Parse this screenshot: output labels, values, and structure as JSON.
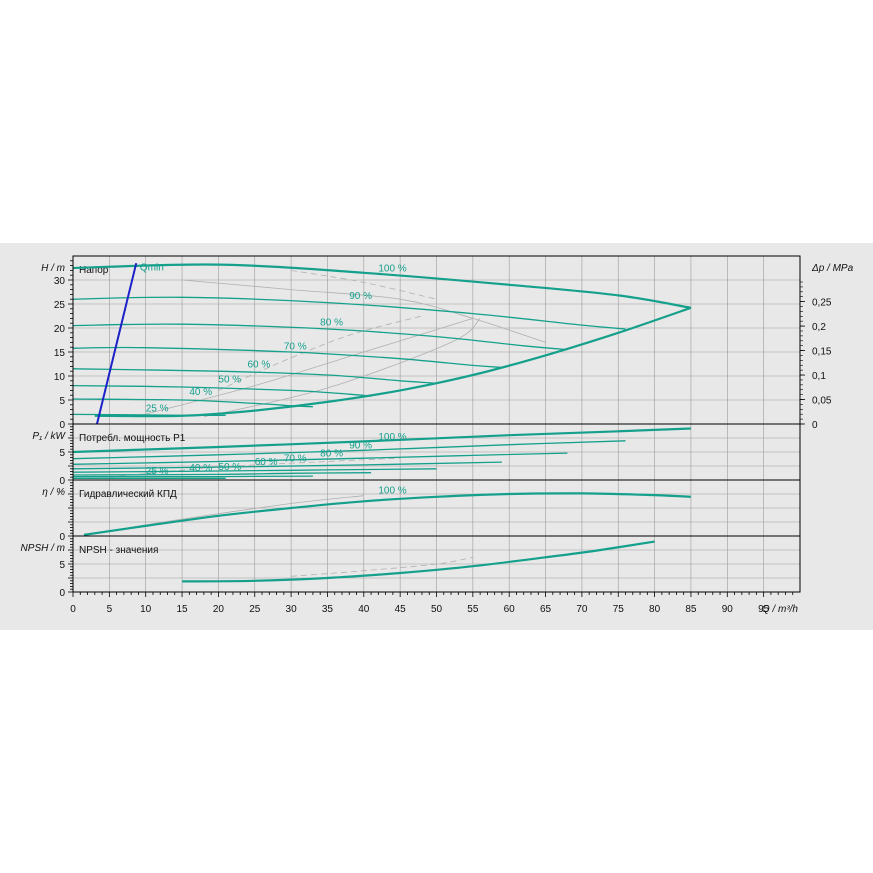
{
  "chart_data": {
    "type": "line",
    "x_axis": {
      "label": "Q / m³/h",
      "range": [
        0,
        100
      ],
      "ticks": [
        0,
        5,
        10,
        15,
        20,
        25,
        30,
        35,
        40,
        45,
        50,
        55,
        60,
        65,
        70,
        75,
        80,
        85,
        90,
        95
      ]
    },
    "colors": {
      "curve": "#15a08c",
      "qmin": "#1a22c8",
      "grid": "#9c9c9c",
      "aux": "#b0b0b0"
    },
    "panels": [
      {
        "id": "head",
        "title": "Напор",
        "ylabel": "H / m",
        "y2label": "Δp / MPa",
        "ylim": [
          0,
          35
        ],
        "yticks": [
          0,
          5,
          10,
          15,
          20,
          25,
          30
        ],
        "y2ticks": [
          {
            "h": 0,
            "label": "0"
          },
          {
            "h": 5.1,
            "label": "0,05"
          },
          {
            "h": 10.2,
            "label": "0,1"
          },
          {
            "h": 15.3,
            "label": "0,15"
          },
          {
            "h": 20.4,
            "label": "0,2"
          },
          {
            "h": 25.5,
            "label": "0,25"
          }
        ],
        "series": [
          {
            "name": "100 %",
            "points": [
              [
                0,
                32.5
              ],
              [
                20,
                33.2
              ],
              [
                40,
                31.5
              ],
              [
                60,
                29
              ],
              [
                75,
                26.8
              ],
              [
                85,
                24.2
              ]
            ],
            "label_at": [
              42,
              31.8
            ]
          },
          {
            "name": "90 %",
            "points": [
              [
                0,
                26
              ],
              [
                15,
                26.4
              ],
              [
                35,
                25.3
              ],
              [
                55,
                23
              ],
              [
                70,
                20.6
              ],
              [
                76,
                19.8
              ]
            ],
            "label_at": [
              38,
              26
            ]
          },
          {
            "name": "80 %",
            "points": [
              [
                0,
                20.5
              ],
              [
                15,
                20.8
              ],
              [
                35,
                19.8
              ],
              [
                50,
                18.2
              ],
              [
                62,
                16.3
              ],
              [
                68,
                15.5
              ]
            ],
            "label_at": [
              34,
              20.5
            ]
          },
          {
            "name": "70 %",
            "points": [
              [
                0,
                15.8
              ],
              [
                10,
                15.9
              ],
              [
                30,
                15
              ],
              [
                45,
                13.6
              ],
              [
                55,
                12.2
              ],
              [
                59,
                11.8
              ]
            ],
            "label_at": [
              29,
              15.5
            ]
          },
          {
            "name": "60 %",
            "points": [
              [
                0,
                11.5
              ],
              [
                20,
                11
              ],
              [
                35,
                10.2
              ],
              [
                45,
                9
              ],
              [
                50,
                8.5
              ]
            ],
            "label_at": [
              24,
              11.8
            ]
          },
          {
            "name": "50 %",
            "points": [
              [
                0,
                8
              ],
              [
                15,
                7.7
              ],
              [
                30,
                7
              ],
              [
                38,
                6.2
              ],
              [
                41,
                5.8
              ]
            ],
            "label_at": [
              20,
              8.6
            ]
          },
          {
            "name": "40 %",
            "points": [
              [
                0,
                5.2
              ],
              [
                15,
                5
              ],
              [
                25,
                4.3
              ],
              [
                30,
                3.8
              ],
              [
                33,
                3.6
              ]
            ],
            "label_at": [
              16,
              6
            ]
          },
          {
            "name": "25 %",
            "points": [
              [
                0,
                2
              ],
              [
                10,
                1.9
              ],
              [
                16,
                1.8
              ],
              [
                21,
                1.8
              ]
            ],
            "label_at": [
              10,
              2.6
            ]
          }
        ],
        "limit_curve": [
          [
            3,
            1.7
          ],
          [
            15,
            1.7
          ],
          [
            25,
            2.8
          ],
          [
            35,
            4.6
          ],
          [
            45,
            7
          ],
          [
            55,
            10.2
          ],
          [
            65,
            14.3
          ],
          [
            75,
            19
          ],
          [
            85,
            24.2
          ]
        ],
        "qmin": {
          "label": "Qmin",
          "points": [
            [
              3.3,
              0
            ],
            [
              8.7,
              33.5
            ]
          ],
          "label_at": [
            9.2,
            32
          ]
        },
        "aux_lines": [
          {
            "points": [
              [
                20,
                7
              ],
              [
                28,
                12.5
              ],
              [
                38,
                18.5
              ],
              [
                48,
                22.5
              ]
            ],
            "dash": true
          },
          {
            "points": [
              [
                8.5,
                1.5
              ],
              [
                25,
                8
              ],
              [
                40,
                15
              ],
              [
                55,
                22
              ]
            ],
            "dash": false
          },
          {
            "points": [
              [
                18,
                1.5
              ],
              [
                35,
                7.5
              ],
              [
                52,
                17
              ],
              [
                56,
                22
              ]
            ],
            "dash": false
          },
          {
            "points": [
              [
                15,
                30
              ],
              [
                30,
                28
              ],
              [
                45,
                26
              ],
              [
                55,
                22
              ],
              [
                65,
                17
              ]
            ],
            "dash": false
          },
          {
            "points": [
              [
                30,
                32
              ],
              [
                40,
                29.5
              ],
              [
                50,
                26
              ]
            ],
            "dash": true
          }
        ]
      },
      {
        "id": "power",
        "title": "Потребл. мощность P1",
        "ylabel": "P₁ / kW",
        "ylim": [
          0,
          10
        ],
        "yticks": [
          0,
          2.5,
          5,
          7.5
        ],
        "ytick_labels": [
          "0",
          "",
          "5",
          ""
        ],
        "series": [
          {
            "name": "100 %",
            "points": [
              [
                0,
                5
              ],
              [
                20,
                5.9
              ],
              [
                40,
                6.9
              ],
              [
                60,
                8
              ],
              [
                75,
                8.7
              ],
              [
                85,
                9.2
              ]
            ],
            "label_at": [
              42,
              7.1
            ]
          },
          {
            "name": "90 %",
            "points": [
              [
                0,
                3.8
              ],
              [
                20,
                4.5
              ],
              [
                40,
                5.3
              ],
              [
                60,
                6.3
              ],
              [
                76,
                7
              ]
            ],
            "label_at": [
              38,
              5.6
            ]
          },
          {
            "name": "80 %",
            "points": [
              [
                0,
                2.8
              ],
              [
                20,
                3.3
              ],
              [
                40,
                3.9
              ],
              [
                55,
                4.4
              ],
              [
                68,
                4.8
              ]
            ],
            "label_at": [
              34,
              4.2
            ]
          },
          {
            "name": "70 %",
            "points": [
              [
                0,
                2
              ],
              [
                20,
                2.3
              ],
              [
                40,
                2.7
              ],
              [
                59,
                3.2
              ]
            ],
            "label_at": [
              29,
              3.3
            ]
          },
          {
            "name": "60 %",
            "points": [
              [
                0,
                1.4
              ],
              [
                20,
                1.6
              ],
              [
                35,
                1.8
              ],
              [
                50,
                2
              ]
            ],
            "label_at": [
              25,
              2.7
            ]
          },
          {
            "name": "50 %",
            "points": [
              [
                0,
                0.9
              ],
              [
                20,
                1
              ],
              [
                30,
                1.2
              ],
              [
                41,
                1.3
              ]
            ],
            "label_at": [
              20,
              1.8
            ]
          },
          {
            "name": "40 %",
            "points": [
              [
                0,
                0.6
              ],
              [
                20,
                0.6
              ],
              [
                33,
                0.7
              ]
            ],
            "label_at": [
              16,
              1.6
            ]
          },
          {
            "name": "25 %",
            "points": [
              [
                0,
                0.3
              ],
              [
                10,
                0.3
              ],
              [
                21,
                0.3
              ]
            ],
            "label_at": [
              10,
              1.1
            ]
          }
        ],
        "aux_lines": [
          {
            "points": [
              [
                5,
                0.5
              ],
              [
                20,
                2.3
              ],
              [
                35,
                3.3
              ],
              [
                45,
                3.9
              ]
            ],
            "dash": true
          }
        ]
      },
      {
        "id": "eff",
        "title": "Гидравлический КПД",
        "ylabel": "η / %",
        "ylim": [
          0,
          10
        ],
        "yticks": [
          0,
          2.5,
          5,
          7.5
        ],
        "ytick_labels": [
          "0",
          "",
          "",
          ""
        ],
        "series": [
          {
            "name": "100 %",
            "points": [
              [
                1.5,
                0.2
              ],
              [
                10,
                1.8
              ],
              [
                20,
                3.6
              ],
              [
                30,
                5
              ],
              [
                40,
                6.2
              ],
              [
                50,
                7
              ],
              [
                60,
                7.5
              ],
              [
                70,
                7.6
              ],
              [
                80,
                7.3
              ],
              [
                85,
                7
              ]
            ],
            "label_at": [
              42,
              7.6
            ]
          }
        ],
        "aux_lines": [
          {
            "points": [
              [
                1.5,
                0.2
              ],
              [
                15,
                3
              ],
              [
                30,
                5.8
              ],
              [
                40,
                7.2
              ]
            ],
            "dash": false
          }
        ]
      },
      {
        "id": "npsh",
        "title": "NPSH - значения",
        "ylabel": "NPSH / m",
        "ylim": [
          0,
          10
        ],
        "yticks": [
          0,
          2.5,
          5,
          7.5
        ],
        "ytick_labels": [
          "0",
          "",
          "5",
          ""
        ],
        "series": [
          {
            "name": "",
            "points": [
              [
                15,
                1.9
              ],
              [
                25,
                2
              ],
              [
                35,
                2.5
              ],
              [
                45,
                3.4
              ],
              [
                55,
                4.6
              ],
              [
                65,
                6.2
              ],
              [
                72,
                7.4
              ],
              [
                80,
                9
              ]
            ]
          }
        ],
        "aux_lines": [
          {
            "points": [
              [
                30,
                2.8
              ],
              [
                40,
                3.8
              ],
              [
                50,
                5
              ],
              [
                55,
                6.2
              ]
            ],
            "dash": true
          }
        ]
      }
    ]
  }
}
